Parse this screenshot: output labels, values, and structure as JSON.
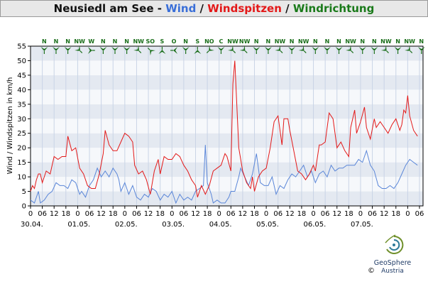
{
  "title": {
    "station": "Neusiedl am See",
    "sep1": " - ",
    "wind": "Wind",
    "sep2": " / ",
    "gust": "Windspitzen",
    "sep3": " / ",
    "dir": "Windrichtung"
  },
  "colors": {
    "wind": "#5a86d8",
    "gust": "#e31818",
    "direction": "#1a6e1a",
    "title_station": "#111111"
  },
  "logo": {
    "name": "GeoSphere",
    "sub": "Austria",
    "copyright": "©",
    "icon": "geosphere-swirl-icon"
  },
  "chart_data": {
    "type": "line",
    "ylabel": "Wind / Windspitzen in km/h",
    "ylim": [
      0,
      55
    ],
    "yticks": [
      0,
      5,
      10,
      15,
      20,
      25,
      30,
      35,
      40,
      45,
      50,
      55
    ],
    "x_range_hours": [
      0,
      198
    ],
    "xticks": [
      {
        "h": 0,
        "label": "0"
      },
      {
        "h": 6,
        "label": "06"
      },
      {
        "h": 12,
        "label": "12"
      },
      {
        "h": 18,
        "label": "18"
      },
      {
        "h": 24,
        "label": "0"
      },
      {
        "h": 30,
        "label": "06"
      },
      {
        "h": 36,
        "label": "12"
      },
      {
        "h": 42,
        "label": "18"
      },
      {
        "h": 48,
        "label": "0"
      },
      {
        "h": 54,
        "label": "06"
      },
      {
        "h": 60,
        "label": "12"
      },
      {
        "h": 66,
        "label": "18"
      },
      {
        "h": 72,
        "label": "0"
      },
      {
        "h": 78,
        "label": "06"
      },
      {
        "h": 84,
        "label": "12"
      },
      {
        "h": 90,
        "label": "18"
      },
      {
        "h": 96,
        "label": "0"
      },
      {
        "h": 102,
        "label": "06"
      },
      {
        "h": 108,
        "label": "12"
      },
      {
        "h": 114,
        "label": "18"
      },
      {
        "h": 120,
        "label": "0"
      },
      {
        "h": 126,
        "label": "06"
      },
      {
        "h": 132,
        "label": "12"
      },
      {
        "h": 138,
        "label": "18"
      },
      {
        "h": 144,
        "label": "0"
      },
      {
        "h": 150,
        "label": "06"
      },
      {
        "h": 156,
        "label": "12"
      },
      {
        "h": 162,
        "label": "18"
      },
      {
        "h": 168,
        "label": "0"
      },
      {
        "h": 174,
        "label": "06"
      },
      {
        "h": 180,
        "label": "12"
      },
      {
        "h": 186,
        "label": "18"
      },
      {
        "h": 192,
        "label": "0"
      },
      {
        "h": 198,
        "label": "06"
      }
    ],
    "dates": [
      {
        "h": 0,
        "label": "30.04."
      },
      {
        "h": 24,
        "label": "01.05."
      },
      {
        "h": 48,
        "label": "02.05."
      },
      {
        "h": 72,
        "label": "03.05."
      },
      {
        "h": 96,
        "label": "04.05."
      },
      {
        "h": 120,
        "label": "05.05."
      },
      {
        "h": 144,
        "label": "06.05."
      },
      {
        "h": 168,
        "label": "07.05."
      }
    ],
    "directions": [
      {
        "h": 7,
        "label": "N",
        "deg": 0
      },
      {
        "h": 13,
        "label": "N",
        "deg": 0
      },
      {
        "h": 19,
        "label": "N",
        "deg": 0
      },
      {
        "h": 25,
        "label": "NW",
        "deg": 315
      },
      {
        "h": 31,
        "label": "W",
        "deg": 270
      },
      {
        "h": 37,
        "label": "N",
        "deg": 0
      },
      {
        "h": 43,
        "label": "N",
        "deg": 0
      },
      {
        "h": 49,
        "label": "N",
        "deg": 0
      },
      {
        "h": 55,
        "label": "NW",
        "deg": 315
      },
      {
        "h": 61,
        "label": "SO",
        "deg": 135
      },
      {
        "h": 67,
        "label": "S",
        "deg": 180
      },
      {
        "h": 73,
        "label": "O",
        "deg": 90
      },
      {
        "h": 79,
        "label": "N",
        "deg": 0
      },
      {
        "h": 85,
        "label": "S",
        "deg": 180
      },
      {
        "h": 91,
        "label": "NO",
        "deg": 45
      },
      {
        "h": 97,
        "label": "C",
        "deg": 0
      },
      {
        "h": 103,
        "label": "NW",
        "deg": 315
      },
      {
        "h": 109,
        "label": "NW",
        "deg": 315
      },
      {
        "h": 115,
        "label": "N",
        "deg": 0
      },
      {
        "h": 121,
        "label": "N",
        "deg": 0
      },
      {
        "h": 127,
        "label": "NW",
        "deg": 315
      },
      {
        "h": 133,
        "label": "N",
        "deg": 0
      },
      {
        "h": 139,
        "label": "NW",
        "deg": 315
      },
      {
        "h": 145,
        "label": "N",
        "deg": 0
      },
      {
        "h": 151,
        "label": "N",
        "deg": 0
      },
      {
        "h": 157,
        "label": "N",
        "deg": 0
      },
      {
        "h": 163,
        "label": "NW",
        "deg": 315
      },
      {
        "h": 169,
        "label": "N",
        "deg": 0
      },
      {
        "h": 175,
        "label": "N",
        "deg": 0
      },
      {
        "h": 181,
        "label": "NW",
        "deg": 315
      },
      {
        "h": 187,
        "label": "N",
        "deg": 0
      },
      {
        "h": 193,
        "label": "NW",
        "deg": 315
      },
      {
        "h": 199,
        "label": "N",
        "deg": 0
      }
    ],
    "series": [
      {
        "name": "Wind",
        "color": "#5a86d8",
        "points": [
          [
            0,
            2
          ],
          [
            2,
            1
          ],
          [
            4,
            5
          ],
          [
            5,
            1
          ],
          [
            7,
            2
          ],
          [
            9,
            4
          ],
          [
            11,
            5
          ],
          [
            13,
            8
          ],
          [
            15,
            7
          ],
          [
            17,
            7
          ],
          [
            19,
            6
          ],
          [
            21,
            9
          ],
          [
            23,
            8
          ],
          [
            25,
            4
          ],
          [
            26,
            5
          ],
          [
            28,
            3
          ],
          [
            30,
            7
          ],
          [
            32,
            9
          ],
          [
            34,
            13
          ],
          [
            36,
            10
          ],
          [
            38,
            12
          ],
          [
            40,
            10
          ],
          [
            42,
            13
          ],
          [
            44,
            11
          ],
          [
            45,
            9
          ],
          [
            46,
            5
          ],
          [
            48,
            8
          ],
          [
            50,
            4
          ],
          [
            52,
            7
          ],
          [
            54,
            3
          ],
          [
            56,
            2
          ],
          [
            58,
            4
          ],
          [
            60,
            3
          ],
          [
            62,
            6
          ],
          [
            64,
            5
          ],
          [
            66,
            2
          ],
          [
            68,
            4
          ],
          [
            70,
            3
          ],
          [
            72,
            5
          ],
          [
            74,
            1
          ],
          [
            76,
            4
          ],
          [
            78,
            2
          ],
          [
            80,
            3
          ],
          [
            82,
            2
          ],
          [
            84,
            5
          ],
          [
            86,
            6
          ],
          [
            88,
            7
          ],
          [
            89,
            21
          ],
          [
            90,
            8
          ],
          [
            92,
            4
          ],
          [
            93,
            1
          ],
          [
            95,
            2
          ],
          [
            97,
            1
          ],
          [
            99,
            1
          ],
          [
            101,
            3
          ],
          [
            102,
            5
          ],
          [
            104,
            5
          ],
          [
            106,
            10
          ],
          [
            107,
            13
          ],
          [
            109,
            10
          ],
          [
            111,
            7
          ],
          [
            113,
            11
          ],
          [
            115,
            18
          ],
          [
            117,
            8
          ],
          [
            119,
            7
          ],
          [
            121,
            7
          ],
          [
            123,
            10
          ],
          [
            125,
            4
          ],
          [
            127,
            7
          ],
          [
            129,
            6
          ],
          [
            131,
            9
          ],
          [
            133,
            11
          ],
          [
            135,
            10
          ],
          [
            137,
            12
          ],
          [
            139,
            14
          ],
          [
            141,
            10
          ],
          [
            143,
            12
          ],
          [
            145,
            8
          ],
          [
            147,
            11
          ],
          [
            149,
            12
          ],
          [
            151,
            10
          ],
          [
            153,
            14
          ],
          [
            155,
            12
          ],
          [
            157,
            13
          ],
          [
            159,
            13
          ],
          [
            161,
            14
          ],
          [
            163,
            14
          ],
          [
            165,
            14
          ],
          [
            167,
            16
          ],
          [
            169,
            15
          ],
          [
            171,
            19
          ],
          [
            173,
            14
          ],
          [
            175,
            12
          ],
          [
            177,
            7
          ],
          [
            179,
            6
          ],
          [
            181,
            6
          ],
          [
            183,
            7
          ],
          [
            185,
            6
          ],
          [
            187,
            8
          ],
          [
            189,
            11
          ],
          [
            191,
            14
          ],
          [
            193,
            16
          ],
          [
            195,
            15
          ],
          [
            197,
            14
          ]
        ]
      },
      {
        "name": "Windspitzen",
        "color": "#e31818",
        "points": [
          [
            0,
            5
          ],
          [
            1,
            7
          ],
          [
            2,
            6
          ],
          [
            3,
            9
          ],
          [
            4,
            11
          ],
          [
            5,
            11
          ],
          [
            6,
            8
          ],
          [
            8,
            12
          ],
          [
            10,
            11
          ],
          [
            12,
            17
          ],
          [
            14,
            16
          ],
          [
            16,
            17
          ],
          [
            18,
            17
          ],
          [
            19,
            24
          ],
          [
            21,
            19
          ],
          [
            23,
            20
          ],
          [
            25,
            13
          ],
          [
            27,
            11
          ],
          [
            29,
            7
          ],
          [
            31,
            6
          ],
          [
            33,
            6
          ],
          [
            35,
            11
          ],
          [
            37,
            18
          ],
          [
            38,
            26
          ],
          [
            40,
            21
          ],
          [
            42,
            19
          ],
          [
            44,
            19
          ],
          [
            46,
            22
          ],
          [
            48,
            25
          ],
          [
            50,
            24
          ],
          [
            52,
            22
          ],
          [
            53,
            14
          ],
          [
            55,
            11
          ],
          [
            57,
            12
          ],
          [
            59,
            9
          ],
          [
            61,
            4
          ],
          [
            63,
            12
          ],
          [
            65,
            16
          ],
          [
            66,
            11
          ],
          [
            68,
            17
          ],
          [
            70,
            16
          ],
          [
            72,
            16
          ],
          [
            74,
            18
          ],
          [
            76,
            17
          ],
          [
            78,
            14
          ],
          [
            80,
            12
          ],
          [
            82,
            9
          ],
          [
            84,
            7
          ],
          [
            85,
            3
          ],
          [
            87,
            7
          ],
          [
            89,
            4
          ],
          [
            91,
            7
          ],
          [
            93,
            12
          ],
          [
            95,
            13
          ],
          [
            97,
            14
          ],
          [
            99,
            18
          ],
          [
            100,
            17
          ],
          [
            102,
            12
          ],
          [
            103,
            42
          ],
          [
            104,
            50
          ],
          [
            106,
            20
          ],
          [
            108,
            12
          ],
          [
            110,
            8
          ],
          [
            112,
            6
          ],
          [
            113,
            10
          ],
          [
            114,
            5
          ],
          [
            116,
            10
          ],
          [
            118,
            12
          ],
          [
            120,
            13
          ],
          [
            122,
            20
          ],
          [
            124,
            29
          ],
          [
            126,
            31
          ],
          [
            128,
            21
          ],
          [
            129,
            30
          ],
          [
            131,
            30
          ],
          [
            132,
            26
          ],
          [
            134,
            19
          ],
          [
            136,
            12
          ],
          [
            138,
            11
          ],
          [
            140,
            9
          ],
          [
            142,
            11
          ],
          [
            144,
            14
          ],
          [
            145,
            12
          ],
          [
            147,
            21
          ],
          [
            148,
            21
          ],
          [
            150,
            22
          ],
          [
            152,
            32
          ],
          [
            154,
            30
          ],
          [
            156,
            20
          ],
          [
            158,
            22
          ],
          [
            160,
            19
          ],
          [
            162,
            17
          ],
          [
            163,
            27
          ],
          [
            165,
            33
          ],
          [
            166,
            25
          ],
          [
            168,
            29
          ],
          [
            170,
            34
          ],
          [
            171,
            27
          ],
          [
            173,
            23
          ],
          [
            175,
            30
          ],
          [
            176,
            27
          ],
          [
            178,
            29
          ],
          [
            180,
            27
          ],
          [
            182,
            25
          ],
          [
            184,
            28
          ],
          [
            186,
            30
          ],
          [
            188,
            26
          ],
          [
            189,
            28
          ],
          [
            190,
            33
          ],
          [
            191,
            32
          ],
          [
            192,
            38
          ],
          [
            193,
            31
          ],
          [
            195,
            26
          ],
          [
            197,
            24
          ]
        ]
      }
    ]
  }
}
